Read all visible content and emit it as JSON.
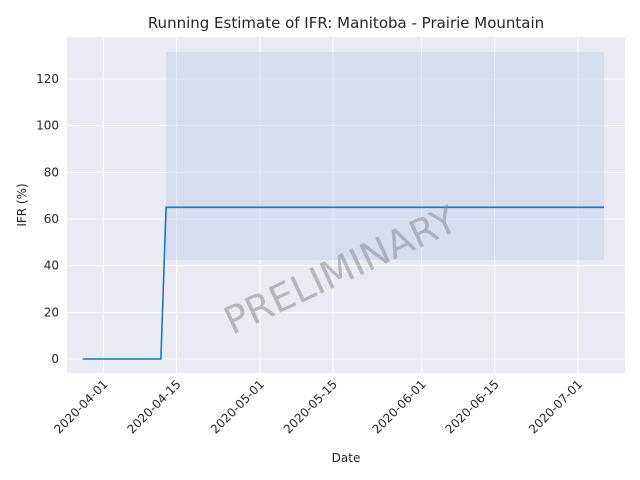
{
  "chart_data": {
    "type": "line",
    "title": "Running Estimate of IFR: Manitoba - Prairie Mountain",
    "xlabel": "Date",
    "ylabel": "IFR (%)",
    "watermark": "PRELIMINARY",
    "x_ticks": [
      "2020-04-01",
      "2020-04-15",
      "2020-05-01",
      "2020-05-15",
      "2020-06-01",
      "2020-06-15",
      "2020-07-01"
    ],
    "y_ticks": [
      0,
      20,
      40,
      60,
      80,
      100,
      120
    ],
    "xlim": [
      "2020-03-25",
      "2020-07-10"
    ],
    "ylim": [
      -6,
      138
    ],
    "grid": true,
    "colors": {
      "line": "#1f77b4",
      "band": "#aec7e8",
      "background": "#eaeaf2",
      "grid": "#ffffff"
    },
    "series": [
      {
        "x": [
          "2020-03-28",
          "2020-04-12",
          "2020-04-13",
          "2020-07-06"
        ],
        "y": [
          0,
          0,
          65,
          65
        ]
      }
    ],
    "band": {
      "x": [
        "2020-04-13",
        "2020-07-06"
      ],
      "lower": [
        42.5,
        42.5
      ],
      "upper": [
        131.5,
        131.5
      ]
    }
  }
}
